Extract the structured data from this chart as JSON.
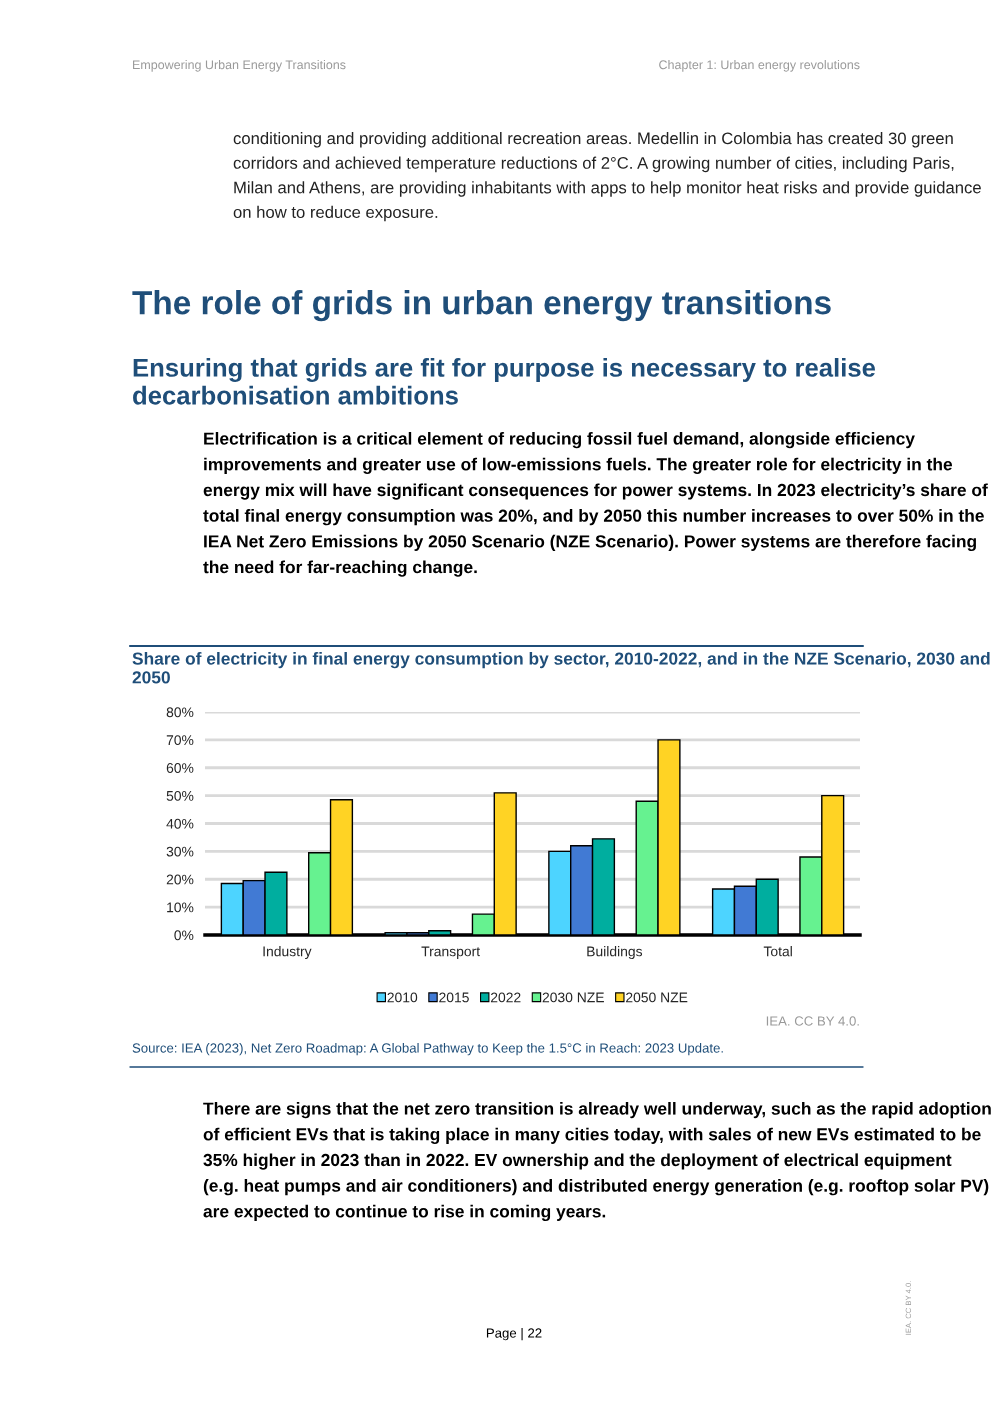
{
  "chart_data": {
    "type": "bar",
    "title": "Share of electricity in final energy consumption by sector, 2010-2022, and in the NZE Scenario, 2030 and 2050",
    "categories": [
      "Industry",
      "Transport",
      "Buildings",
      "Total"
    ],
    "series": [
      {
        "name": "2010",
        "color": "#4dd4ff",
        "values": [
          18.5,
          0.8,
          30,
          16.5
        ]
      },
      {
        "name": "2015",
        "color": "#417ad4",
        "values": [
          19.5,
          0.8,
          32,
          17.5
        ]
      },
      {
        "name": "2022",
        "color": "#00ae9f",
        "values": [
          22.5,
          1.5,
          34.5,
          20
        ]
      },
      {
        "name": "2030 NZE",
        "color": "#66f290",
        "values": [
          29.5,
          7.5,
          48,
          28
        ]
      },
      {
        "name": "2050 NZE",
        "color": "#ffd324",
        "values": [
          48.5,
          51,
          70,
          50
        ]
      }
    ],
    "ylim": [
      0,
      80
    ],
    "yticks": [
      {
        "value": 0,
        "label": "0%"
      },
      {
        "value": 10,
        "label": "10%"
      },
      {
        "value": 20,
        "label": "20%"
      },
      {
        "value": 30,
        "label": "30%"
      },
      {
        "value": 40,
        "label": "40%"
      },
      {
        "value": 50,
        "label": "50%"
      },
      {
        "value": 60,
        "label": "60%"
      },
      {
        "value": 70,
        "label": "70%"
      },
      {
        "value": 80,
        "label": "80%"
      }
    ],
    "grid": "y",
    "legend": "bottom",
    "annotations": [
      "Empowering Urban Energy Transitions",
      "Chapter 1: Urban energy revolutions",
      "conditioning and providing additional recreation areas. Medellin in Colombia has created 30 green corridors and achieved temperature reductions of 2°C. A growing number of cities, including Paris, Milan and Athens, are providing inhabitants with apps to help monitor heat risks and provide guidance on how to reduce exposure.",
      "The role of grids in urban energy transitions",
      "Ensuring that grids are fit for purpose is necessary to realise decarbonisation ambitions",
      "Electrification is a critical element of reducing fossil fuel demand, alongside efficiency improvements and greater use of low-emissions fuels. The greater role for electricity in the energy mix will have significant consequences for power systems. In 2023 electricity’s share of total final energy consumption was 20%, and by 2050 this number increases to over 50% in the IEA Net Zero Emissions by 2050 Scenario (NZE Scenario). Power systems are therefore facing the need for far-reaching change.",
      "IEA. CC BY 4.0.",
      "Source: IEA (2023), Net Zero Roadmap: A Global Pathway to Keep the 1.5°C in Reach: 2023 Update.",
      "There are signs that the net zero transition is already well underway, such as the rapid adoption of efficient EVs that is taking place in many cities today, with sales of new EVs estimated to be 35% higher in 2023 than in 2022. EV ownership and the deployment of electrical equipment (e.g. heat pumps and air conditioners) and distributed energy generation (e.g. rooftop solar PV) are expected to continue to rise in coming years.",
      "Page | 22",
      "IEA. CC BY 4.0."
    ]
  }
}
